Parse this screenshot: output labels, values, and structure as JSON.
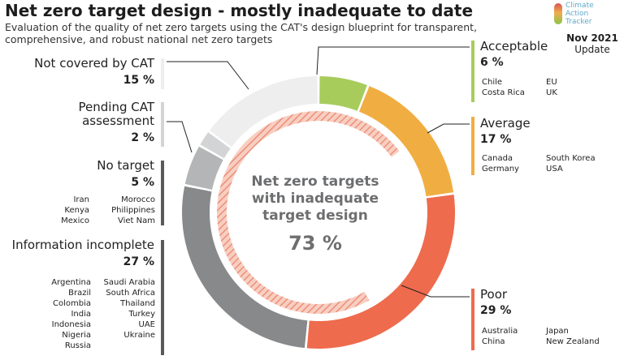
{
  "header": {
    "title": "Net zero target design - mostly inadequate to date",
    "subtitle": "Evaluation of the quality of net zero targets using the CAT's design blueprint for transparent, comprehensive, and robust national net zero targets",
    "logo_text": [
      "Climate",
      "Action",
      "Tracker"
    ],
    "date": "Nov 2021",
    "update": "Update"
  },
  "center": {
    "lines": [
      "Net zero targets",
      "with inadequate",
      "target design"
    ],
    "pct": "73 %"
  },
  "categories": {
    "acceptable": {
      "name": "Acceptable",
      "pct": "6 %",
      "countries": [
        "Chile",
        "Costa Rica",
        "EU",
        "UK"
      ],
      "color": "#a8cc5c"
    },
    "average": {
      "name": "Average",
      "pct": "17 %",
      "countries": [
        "Canada",
        "Germany",
        "South Korea",
        "USA"
      ],
      "color": "#f0ae42"
    },
    "poor": {
      "name": "Poor",
      "pct": "29 %",
      "countries": [
        "Australia",
        "China",
        "Japan",
        "New Zealand"
      ],
      "color": "#ee6b4d"
    },
    "info_incomplete": {
      "name": "Information incomplete",
      "pct": "27 %",
      "countries": [
        "Argentina",
        "Brazil",
        "Colombia",
        "India",
        "Indonesia",
        "Nigeria",
        "Russia",
        "Saudi Arabia",
        "South Africa",
        "Thailand",
        "Turkey",
        "UAE",
        "Ukraine"
      ],
      "color": "#87898b"
    },
    "no_target": {
      "name": "No target",
      "pct": "5 %",
      "countries": [
        "Iran",
        "Kenya",
        "Mexico",
        "Morocco",
        "Philippines",
        "Viet Nam"
      ],
      "color": "#b4b5b6"
    },
    "pending": {
      "name_lines": [
        "Pending CAT",
        "assessment"
      ],
      "pct": "2 %",
      "color": "#d3d4d5"
    },
    "not_covered": {
      "name": "Not covered by CAT",
      "pct": "15 %",
      "color": "#eeeeee"
    }
  },
  "chart_data": {
    "type": "pie",
    "title": "Net zero target design - mostly inadequate to date",
    "categories": [
      "Acceptable",
      "Average",
      "Poor",
      "Information incomplete",
      "No target",
      "Pending CAT assessment",
      "Not covered by CAT"
    ],
    "values": [
      6,
      17,
      29,
      27,
      5,
      2,
      15
    ],
    "colors": [
      "#a8cc5c",
      "#f0ae42",
      "#ee6b4d",
      "#87898b",
      "#b4b5b6",
      "#d3d4d5",
      "#eeeeee"
    ],
    "inner_arc": {
      "label": "Net zero targets with inadequate target design",
      "value": 73
    }
  }
}
